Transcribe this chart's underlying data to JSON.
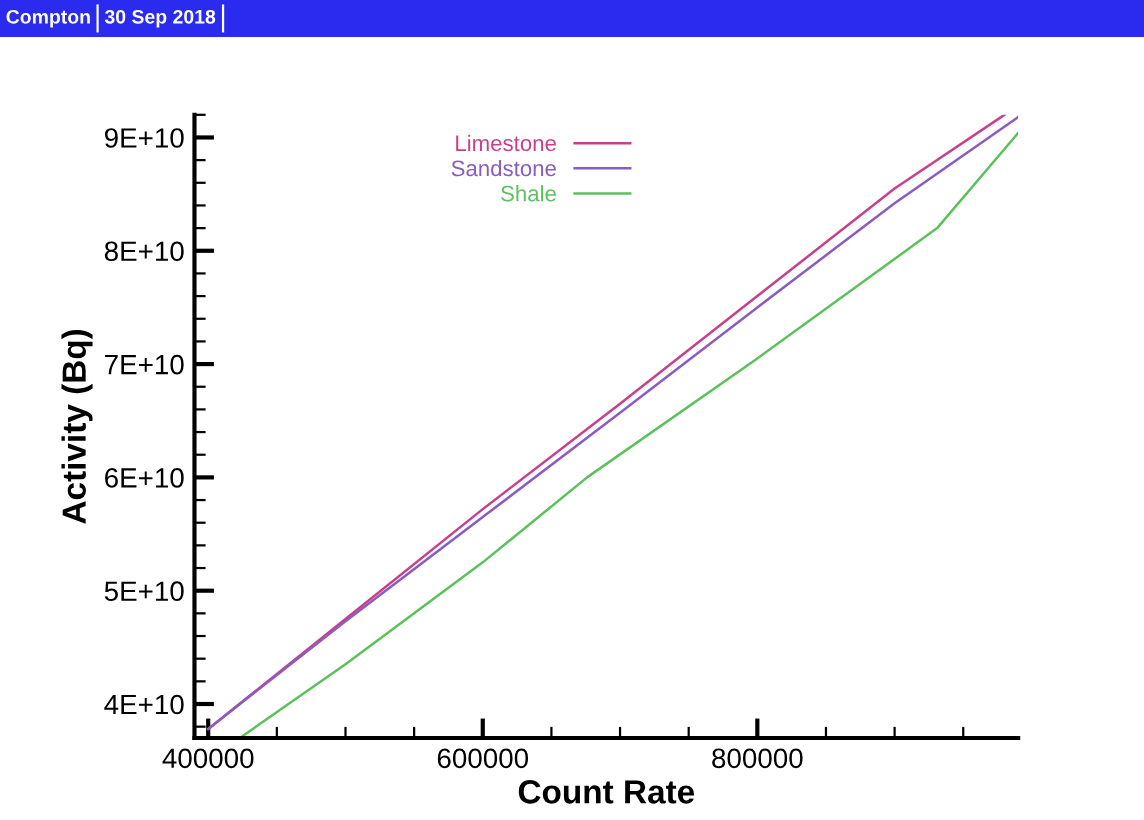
{
  "chart_data": {
    "type": "line",
    "xlabel": "Count Rate",
    "ylabel": "Activity (Bq)",
    "annotations": [
      "Compton",
      "30 Sep 2018"
    ],
    "series": [
      {
        "name": "Limestone",
        "color": "#c8408a",
        "x": [
          400000,
          500000,
          600000,
          700000,
          800000,
          900000,
          980000
        ],
        "values": [
          37800000000.0,
          47500000000.0,
          57200000000.0,
          66500000000.0,
          76000000000.0,
          85500000000.0,
          92000000000.0
        ]
      },
      {
        "name": "Sandstone",
        "color": "#8a5cc0",
        "x": [
          400000,
          500000,
          600000,
          700000,
          800000,
          900000,
          990000
        ],
        "values": [
          37800000000.0,
          47300000000.0,
          56500000000.0,
          65700000000.0,
          75000000000.0,
          84200000000.0,
          91800000000.0
        ]
      },
      {
        "name": "Shale",
        "color": "#5cc05c",
        "x": [
          423000,
          500000,
          600000,
          676000,
          800000,
          931000,
          990000
        ],
        "values": [
          37000000000.0,
          43500000000.0,
          52500000000.0,
          60000000000.0,
          70500000000.0,
          82000000000.0,
          90400000000.0
        ]
      }
    ],
    "xlim": [
      390000,
      990000
    ],
    "ylim": [
      37000000000.0,
      92000000000.0
    ],
    "xticks": [
      400000,
      600000,
      800000
    ],
    "yticks": [
      {
        "value": 40000000000.0,
        "label": "4E+10"
      },
      {
        "value": 50000000000.0,
        "label": "5E+10"
      },
      {
        "value": 60000000000.0,
        "label": "6E+10"
      },
      {
        "value": 70000000000.0,
        "label": "7E+10"
      },
      {
        "value": 80000000000.0,
        "label": "8E+10"
      },
      {
        "value": 90000000000.0,
        "label": "9E+10"
      }
    ],
    "grid": false,
    "legend": "top",
    "marker": "none",
    "line_style": "solid"
  }
}
